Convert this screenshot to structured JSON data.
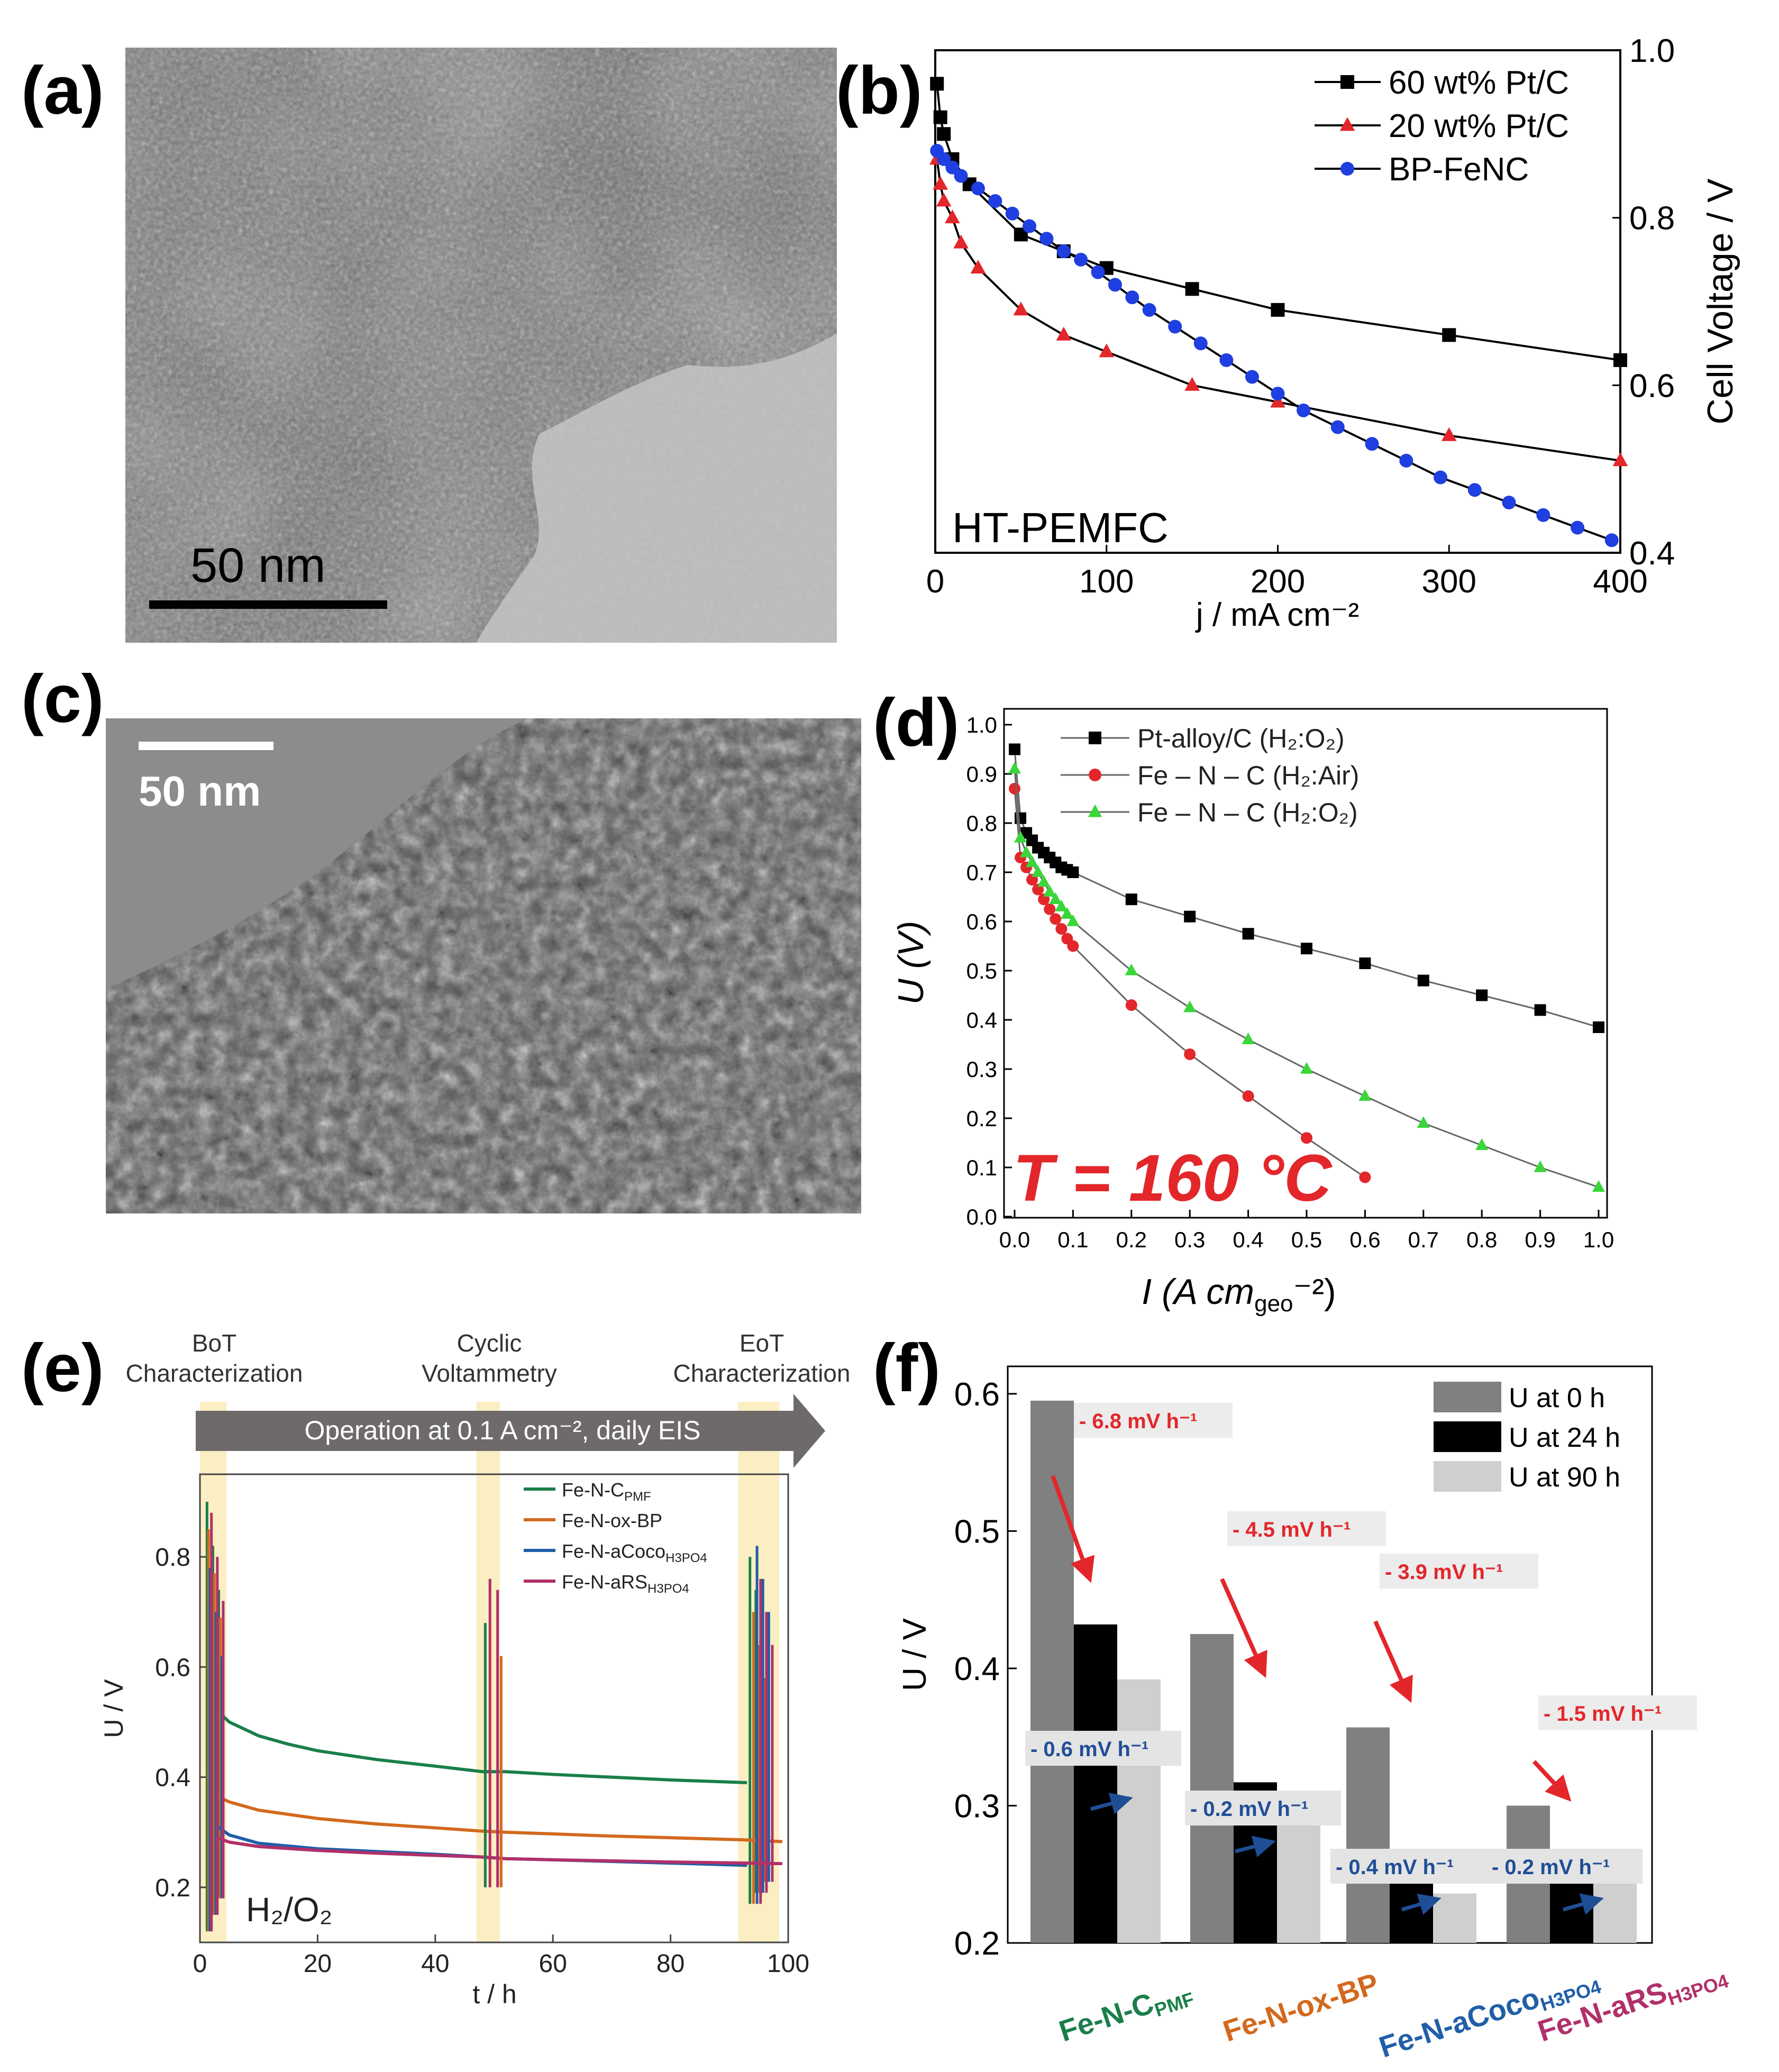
{
  "panels": {
    "a": {
      "label": "(a)",
      "scalebar": "50 nm"
    },
    "b": {
      "label": "(b)",
      "inset": "HT-PEMFC"
    },
    "c": {
      "label": "(c)",
      "scalebar": "50 nm"
    },
    "d": {
      "label": "(d)",
      "annotation": "T = 160 °C"
    },
    "e": {
      "label": "(e)",
      "stages": [
        "BoT",
        "Characterization",
        "Cyclic",
        "Voltammetry",
        "EoT",
        "Characterization"
      ],
      "arrow_text": "Operation at 0.1 A cm⁻², daily EIS",
      "gas": "H₂/O₂"
    },
    "f": {
      "label": "(f)"
    }
  },
  "colors": {
    "pmf": "#1a7f4a",
    "oxbp": "#d2691e",
    "acoco": "#1f5fa8",
    "ars": "#b0306a",
    "red": "#e3262a",
    "blue": "#1f4e96"
  },
  "chart_data": [
    {
      "id": "b",
      "type": "line",
      "title": "",
      "xlabel": "j / mA cm⁻²",
      "ylabel": "Cell Voltage / V",
      "xlim": [
        0,
        400
      ],
      "ylim": [
        0.4,
        1.0
      ],
      "xticks": [
        "0",
        "100",
        "200",
        "300",
        "400"
      ],
      "yticks": [
        "0.4",
        "0.6",
        "0.8",
        "1.0"
      ],
      "series": [
        {
          "name": "60 wt% Pt/C",
          "marker": "square",
          "color": "#000000",
          "x": [
            1,
            3,
            5,
            10,
            20,
            50,
            75,
            100,
            150,
            200,
            300,
            400
          ],
          "y": [
            0.96,
            0.92,
            0.9,
            0.87,
            0.84,
            0.78,
            0.76,
            0.74,
            0.715,
            0.69,
            0.66,
            0.63
          ]
        },
        {
          "name": "20 wt% Pt/C",
          "marker": "triangle",
          "color": "#e3262a",
          "x": [
            1,
            3,
            5,
            10,
            15,
            25,
            50,
            75,
            100,
            150,
            200,
            300,
            400
          ],
          "y": [
            0.87,
            0.84,
            0.82,
            0.8,
            0.77,
            0.74,
            0.69,
            0.66,
            0.64,
            0.6,
            0.58,
            0.54,
            0.51
          ]
        },
        {
          "name": "BP-FeNC",
          "marker": "circle",
          "color": "#1f3fe0",
          "x": [
            1,
            5,
            10,
            15,
            25,
            35,
            45,
            55,
            65,
            75,
            85,
            95,
            105,
            115,
            125,
            140,
            155,
            170,
            185,
            200,
            215,
            235,
            255,
            275,
            295,
            315,
            335,
            355,
            375,
            395
          ],
          "y": [
            0.88,
            0.87,
            0.86,
            0.85,
            0.835,
            0.82,
            0.805,
            0.79,
            0.775,
            0.76,
            0.75,
            0.735,
            0.72,
            0.705,
            0.69,
            0.67,
            0.65,
            0.63,
            0.61,
            0.59,
            0.57,
            0.55,
            0.53,
            0.51,
            0.49,
            0.475,
            0.46,
            0.445,
            0.43,
            0.415
          ]
        }
      ]
    },
    {
      "id": "d",
      "type": "line",
      "xlabel": "I (A cm",
      "xlabel_sub": "geo",
      "xlabel_end": "⁻²)",
      "ylabel": "U (V)",
      "xlim": [
        0,
        1.0
      ],
      "ylim": [
        0,
        1.05
      ],
      "xticks": [
        "0.0",
        "0.1",
        "0.2",
        "0.3",
        "0.4",
        "0.5",
        "0.6",
        "0.7",
        "0.8",
        "0.9",
        "1.0"
      ],
      "yticks": [
        "0.0",
        "0.1",
        "0.2",
        "0.3",
        "0.4",
        "0.5",
        "0.6",
        "0.7",
        "0.8",
        "0.9",
        "1.0"
      ],
      "series": [
        {
          "name": "Pt-alloy/C (H₂:O₂)",
          "marker": "square",
          "color": "#000000",
          "x": [
            0.0,
            0.01,
            0.02,
            0.03,
            0.04,
            0.05,
            0.06,
            0.07,
            0.08,
            0.09,
            0.1,
            0.2,
            0.3,
            0.4,
            0.5,
            0.6,
            0.7,
            0.8,
            0.9,
            1.0
          ],
          "y": [
            0.95,
            0.81,
            0.78,
            0.765,
            0.75,
            0.74,
            0.73,
            0.72,
            0.71,
            0.705,
            0.7,
            0.645,
            0.61,
            0.575,
            0.545,
            0.515,
            0.48,
            0.45,
            0.42,
            0.385
          ]
        },
        {
          "name": "Fe – N – C (H₂:Air)",
          "marker": "circle",
          "color": "#e3262a",
          "x": [
            0.0,
            0.01,
            0.02,
            0.03,
            0.04,
            0.05,
            0.06,
            0.07,
            0.08,
            0.09,
            0.1,
            0.2,
            0.3,
            0.4,
            0.5,
            0.6
          ],
          "y": [
            0.87,
            0.73,
            0.71,
            0.685,
            0.665,
            0.645,
            0.625,
            0.605,
            0.585,
            0.565,
            0.55,
            0.43,
            0.33,
            0.245,
            0.16,
            0.08
          ]
        },
        {
          "name": "Fe – N – C (H₂:O₂)",
          "marker": "triangle",
          "color": "#3ad63a",
          "x": [
            0.0,
            0.01,
            0.02,
            0.03,
            0.04,
            0.05,
            0.06,
            0.07,
            0.08,
            0.09,
            0.1,
            0.2,
            0.3,
            0.4,
            0.5,
            0.6,
            0.7,
            0.8,
            0.9,
            1.0
          ],
          "y": [
            0.91,
            0.77,
            0.74,
            0.72,
            0.7,
            0.68,
            0.66,
            0.645,
            0.63,
            0.615,
            0.6,
            0.5,
            0.425,
            0.36,
            0.3,
            0.245,
            0.19,
            0.145,
            0.1,
            0.06
          ]
        }
      ]
    },
    {
      "id": "e",
      "type": "line",
      "xlabel": "t / h",
      "ylabel": "U / V",
      "xlim": [
        0,
        100
      ],
      "ylim": [
        0.1,
        0.95
      ],
      "xticks": [
        "0",
        "20",
        "40",
        "60",
        "80",
        "100"
      ],
      "yticks": [
        "0.2",
        "0.4",
        "0.6",
        "0.8"
      ],
      "series": [
        {
          "name": "Fe-N-C",
          "name_sub": "PMF",
          "color": "#1a7f4a",
          "x": [
            3,
            5,
            10,
            15,
            20,
            30,
            40,
            48,
            52,
            60,
            70,
            80,
            93
          ],
          "y": [
            0.52,
            0.5,
            0.475,
            0.46,
            0.448,
            0.432,
            0.42,
            0.41,
            0.41,
            0.405,
            0.4,
            0.395,
            0.39
          ]
        },
        {
          "name": "Fe-N-ox-BP",
          "name_sub": "",
          "color": "#d2691e",
          "x": [
            3,
            5,
            10,
            20,
            30,
            40,
            48,
            52,
            60,
            70,
            80,
            93,
            99
          ],
          "y": [
            0.365,
            0.355,
            0.34,
            0.325,
            0.315,
            0.308,
            0.302,
            0.3,
            0.297,
            0.293,
            0.29,
            0.286,
            0.283
          ]
        },
        {
          "name": "Fe-N-aCoco",
          "name_sub": "H3PO4",
          "color": "#1f5fa8",
          "x": [
            3,
            5,
            10,
            20,
            30,
            40,
            48,
            52,
            60,
            70,
            80,
            93
          ],
          "y": [
            0.31,
            0.295,
            0.28,
            0.27,
            0.265,
            0.26,
            0.255,
            0.252,
            0.25,
            0.247,
            0.244,
            0.24
          ]
        },
        {
          "name": "Fe-N-aRS",
          "name_sub": "H3PO4",
          "color": "#b0306a",
          "x": [
            3,
            5,
            10,
            20,
            30,
            40,
            48,
            52,
            60,
            70,
            80,
            93,
            99
          ],
          "y": [
            0.29,
            0.282,
            0.274,
            0.267,
            0.262,
            0.258,
            0.255,
            0.252,
            0.25,
            0.248,
            0.246,
            0.244,
            0.243
          ]
        }
      ]
    },
    {
      "id": "f",
      "type": "bar",
      "ylabel": "U / V",
      "ylim": [
        0.2,
        0.62
      ],
      "yticks": [
        "0.2",
        "0.3",
        "0.4",
        "0.5",
        "0.6"
      ],
      "categories": [
        {
          "main": "Fe-N-C",
          "sub": "PMF",
          "color": "#1a7f4a"
        },
        {
          "main": "Fe-N-ox-BP",
          "sub": "",
          "color": "#d2691e"
        },
        {
          "main": "Fe-N-aCoco",
          "sub": "H3PO4",
          "color": "#1f5fa8"
        },
        {
          "main": "Fe-N-aRS",
          "sub": "H3PO4",
          "color": "#b0306a"
        }
      ],
      "series": [
        {
          "name": "U at 0 h",
          "color": "#808080",
          "values": [
            0.595,
            0.425,
            0.357,
            0.3
          ]
        },
        {
          "name": "U at 24 h",
          "color": "#000000",
          "values": [
            0.432,
            0.317,
            0.263,
            0.263
          ]
        },
        {
          "name": "U at 90 h",
          "color": "#cfcfcf",
          "values": [
            0.392,
            0.304,
            0.236,
            0.249
          ]
        }
      ],
      "rates_0_24": [
        "- 6.8 mV h⁻¹",
        "- 4.5 mV h⁻¹",
        "- 3.9 mV h⁻¹",
        "- 1.5 mV h⁻¹"
      ],
      "rates_24_90": [
        "- 0.6 mV h⁻¹",
        "- 0.2 mV h⁻¹",
        "- 0.4 mV h⁻¹",
        "- 0.2 mV h⁻¹"
      ]
    }
  ]
}
